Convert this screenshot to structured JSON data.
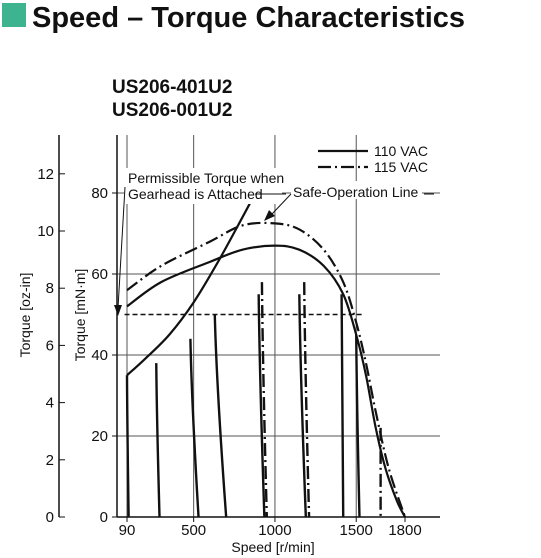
{
  "header": {
    "title": "Speed – Torque Characteristics",
    "accent_color": "#3db38f"
  },
  "models": [
    "US206-401U2",
    "US206-001U2"
  ],
  "chart_data": {
    "type": "line",
    "xlabel": "Speed [r/min]",
    "ylabel_left": "Torque [oz-in]",
    "ylabel_right": "Torque [mN·m]",
    "xlim": [
      75,
      1900
    ],
    "ylim_mNm": [
      0,
      95
    ],
    "x_ticks": [
      {
        "value": 90,
        "label": "90"
      },
      {
        "value": 500,
        "label": "500"
      },
      {
        "value": 1000,
        "label": "1000"
      },
      {
        "value": 1500,
        "label": "1500"
      },
      {
        "value": 1800,
        "label": "1800"
      }
    ],
    "y_ticks_mNm": [
      {
        "value": 0,
        "label": "0"
      },
      {
        "value": 20,
        "label": "20"
      },
      {
        "value": 40,
        "label": "40"
      },
      {
        "value": 60,
        "label": "60"
      },
      {
        "value": 80,
        "label": "80"
      }
    ],
    "y_ticks_ozin": [
      {
        "value": 0,
        "label": "0"
      },
      {
        "value": 2,
        "label": "2"
      },
      {
        "value": 4,
        "label": "4"
      },
      {
        "value": 6,
        "label": "6"
      },
      {
        "value": 8,
        "label": "8"
      },
      {
        "value": 10,
        "label": "10"
      },
      {
        "value": 12,
        "label": "12"
      }
    ],
    "grid_x": [
      90,
      500,
      1000,
      1500
    ],
    "grid_y": [
      20,
      40,
      60,
      80
    ],
    "legend": {
      "placement": "top-right",
      "entries": [
        "110 VAC",
        "115 VAC"
      ]
    },
    "annotations": {
      "permissible_line1": "Permissible Torque when",
      "permissible_line2": "Gearhead is Attached",
      "safe_operation": "Safe-Operation Line"
    },
    "series": [
      {
        "name": "110 VAC",
        "style": "solid",
        "kind": "speed-torque",
        "points": [
          [
            90,
            52
          ],
          [
            300,
            58
          ],
          [
            600,
            63
          ],
          [
            800,
            66
          ],
          [
            1000,
            67
          ],
          [
            1150,
            66
          ],
          [
            1300,
            62
          ],
          [
            1420,
            55
          ],
          [
            1500,
            45
          ],
          [
            1560,
            35
          ],
          [
            1620,
            22
          ],
          [
            1680,
            12
          ],
          [
            1750,
            4
          ],
          [
            1800,
            0
          ]
        ]
      },
      {
        "name": "115 VAC",
        "style": "dashdot",
        "kind": "speed-torque",
        "points": [
          [
            90,
            56
          ],
          [
            300,
            62
          ],
          [
            600,
            68
          ],
          [
            800,
            72
          ],
          [
            1000,
            72.5
          ],
          [
            1150,
            71
          ],
          [
            1300,
            66
          ],
          [
            1420,
            58
          ],
          [
            1500,
            48
          ],
          [
            1560,
            38
          ],
          [
            1620,
            26
          ],
          [
            1700,
            12
          ],
          [
            1800,
            0
          ]
        ]
      },
      {
        "name": "Permissible Torque when Gearhead is Attached",
        "style": "dashed",
        "points": [
          [
            75,
            50
          ],
          [
            1550,
            50
          ]
        ]
      },
      {
        "name": "Safe-Operation Line",
        "style": "solid",
        "points": [
          [
            90,
            35
          ],
          [
            200,
            39
          ],
          [
            350,
            45
          ],
          [
            500,
            53
          ],
          [
            650,
            63
          ],
          [
            800,
            74
          ],
          [
            880,
            80
          ],
          [
            920,
            83
          ]
        ]
      }
    ],
    "load_lines_110VAC": [
      {
        "top": [
          90,
          35
        ],
        "bottom": [
          100,
          0
        ]
      },
      {
        "top": [
          270,
          38
        ],
        "bottom": [
          290,
          0
        ]
      },
      {
        "top": [
          480,
          44
        ],
        "bottom": [
          530,
          0
        ]
      },
      {
        "top": [
          630,
          50
        ],
        "bottom": [
          700,
          0
        ]
      },
      {
        "top": [
          900,
          55
        ],
        "bottom": [
          935,
          0
        ]
      },
      {
        "top": [
          1150,
          55
        ],
        "bottom": [
          1190,
          0
        ]
      },
      {
        "top": [
          1410,
          55
        ],
        "bottom": [
          1420,
          0
        ]
      },
      {
        "top": [
          1500,
          45
        ],
        "bottom": [
          1520,
          0
        ]
      }
    ],
    "load_lines_115VAC": [
      {
        "top": [
          920,
          58
        ],
        "bottom": [
          950,
          0
        ]
      },
      {
        "top": [
          1180,
          58
        ],
        "bottom": [
          1210,
          0
        ]
      },
      {
        "top": [
          1650,
          22
        ],
        "bottom": [
          1650,
          0
        ]
      }
    ]
  }
}
